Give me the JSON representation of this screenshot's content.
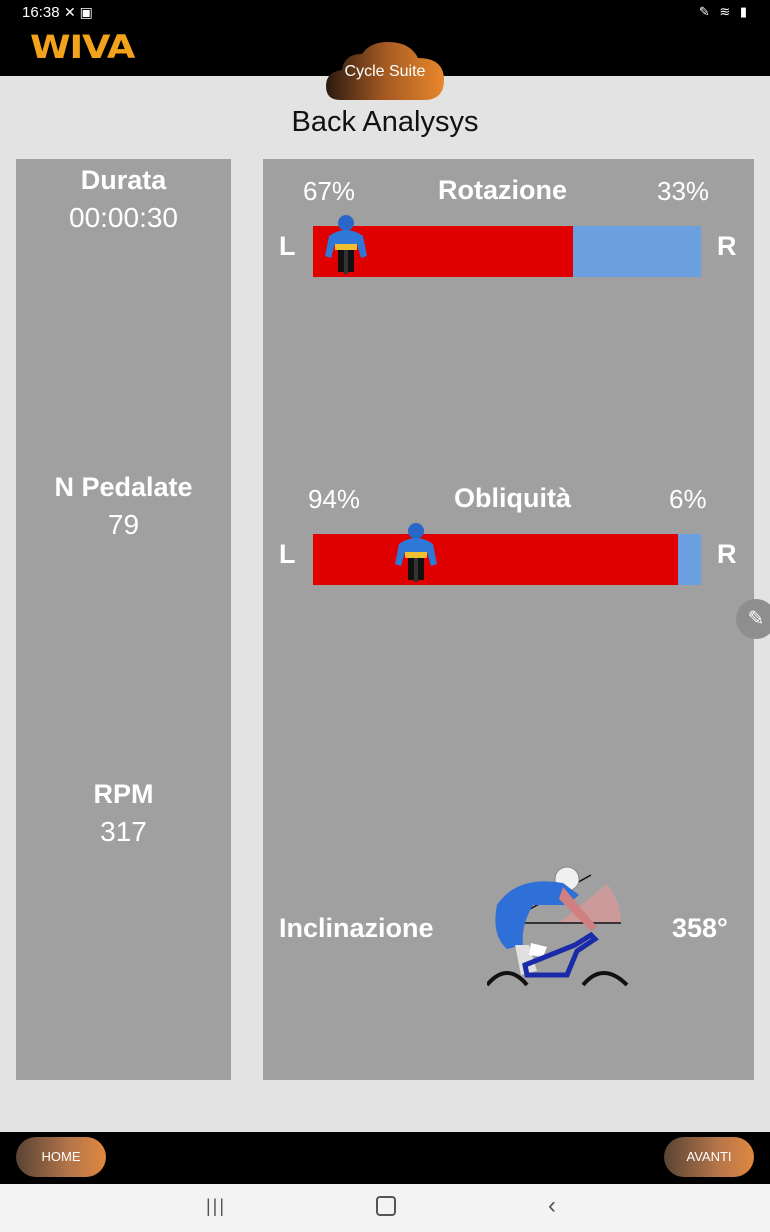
{
  "status_bar": {
    "time": "16:38",
    "left_icons": "✕ ▣",
    "right_icons": "✎ ≋ ▮"
  },
  "app": {
    "logo": "WIVA",
    "cloud_label": "Cycle Suite",
    "accent_color": "#e8872c"
  },
  "page": {
    "title": "Back Analysys"
  },
  "stats": {
    "duration_label": "Durata",
    "duration_value": "00:00:30",
    "pedal_label": "N Pedalate",
    "pedal_value": "79",
    "rpm_label": "RPM",
    "rpm_value": "317"
  },
  "rotation": {
    "title": "Rotazione",
    "left_pct": "67%",
    "right_pct": "33%",
    "left_fraction": 0.67,
    "left_letter": "L",
    "right_letter": "R"
  },
  "obliquity": {
    "title": "Obliquità",
    "left_pct": "94%",
    "right_pct": "6%",
    "left_fraction": 0.94,
    "left_letter": "L",
    "right_letter": "R"
  },
  "inclination": {
    "label": "Inclinazione",
    "value": "358°"
  },
  "bottom": {
    "home_label": "HOME",
    "next_label": "AVANTI"
  },
  "colors": {
    "left_bar": "#e00000",
    "right_bar": "#6ba0e0",
    "panel": "#a0a0a0"
  },
  "icons": {
    "edit": "pencil-icon",
    "nav_recent": "recent-apps-icon",
    "nav_home": "home-circle-icon",
    "nav_back": "back-chevron-icon"
  }
}
